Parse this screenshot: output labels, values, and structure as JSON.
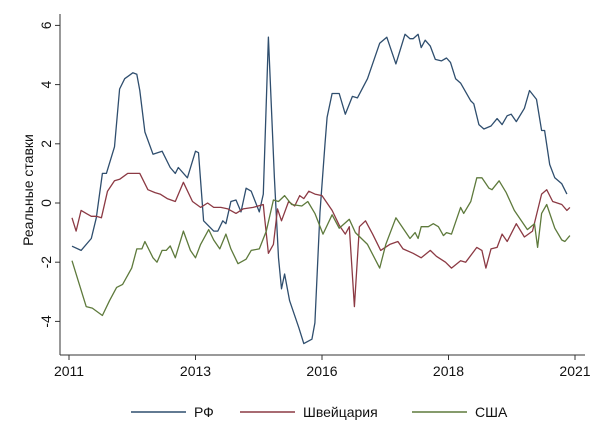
{
  "chart_data": {
    "type": "line",
    "title": "",
    "xlabel": "",
    "ylabel": "Реальные ставки",
    "xlim": [
      2011,
      2021
    ],
    "ylim": [
      -5,
      6.3
    ],
    "xticks": [
      {
        "value": 2011,
        "label": "2011"
      },
      {
        "value": 2013.5,
        "label": "2013"
      },
      {
        "value": 2016,
        "label": "2016"
      },
      {
        "value": 2018.5,
        "label": "2018"
      },
      {
        "value": 2021,
        "label": "2021"
      }
    ],
    "yticks": [
      -4,
      -2,
      0,
      2,
      4,
      6
    ],
    "grid": false,
    "legend_position": "bottom",
    "series": [
      {
        "name": "РФ",
        "color": "#2f4e6e",
        "x": [
          2011.06,
          2011.24,
          2011.44,
          2011.54,
          2011.66,
          2011.74,
          2011.9,
          2012.0,
          2012.1,
          2012.26,
          2012.34,
          2012.4,
          2012.5,
          2012.66,
          2012.84,
          2013.0,
          2013.1,
          2013.16,
          2013.34,
          2013.5,
          2013.56,
          2013.66,
          2013.86,
          2013.94,
          2014.04,
          2014.1,
          2014.2,
          2014.3,
          2014.4,
          2014.5,
          2014.6,
          2014.76,
          2014.84,
          2014.94,
          2015.06,
          2015.14,
          2015.2,
          2015.26,
          2015.36,
          2015.54,
          2015.64,
          2015.8,
          2015.86,
          2015.96,
          2016.06,
          2016.1,
          2016.2,
          2016.34,
          2016.46,
          2016.6,
          2016.7,
          2016.9,
          2017.14,
          2017.28,
          2017.46,
          2017.64,
          2017.74,
          2017.8,
          2017.9,
          2017.96,
          2018.04,
          2018.14,
          2018.24,
          2018.36,
          2018.46,
          2018.54,
          2018.64,
          2018.74,
          2018.94,
          2019.0,
          2019.1,
          2019.2,
          2019.34,
          2019.46,
          2019.56,
          2019.66,
          2019.74,
          2019.84,
          2020.0,
          2020.1,
          2020.24,
          2020.34,
          2020.4,
          2020.5,
          2020.6,
          2020.74,
          2020.84
        ],
        "y": [
          -1.46,
          -1.6,
          -1.2,
          -0.5,
          1.0,
          1.0,
          1.9,
          3.85,
          4.2,
          4.4,
          4.35,
          3.8,
          2.4,
          1.65,
          1.75,
          1.2,
          1.0,
          1.2,
          0.85,
          1.75,
          1.7,
          -0.6,
          -0.95,
          -0.95,
          -0.6,
          -0.7,
          0.05,
          0.1,
          -0.3,
          0.5,
          0.4,
          -0.3,
          0.3,
          5.6,
          0.85,
          -1.85,
          -2.9,
          -2.4,
          -3.3,
          -4.2,
          -4.75,
          -4.6,
          -4.05,
          -0.3,
          2.0,
          2.9,
          3.7,
          3.7,
          3.0,
          3.6,
          3.55,
          4.2,
          5.4,
          5.6,
          4.7,
          5.7,
          5.55,
          5.55,
          5.7,
          5.25,
          5.5,
          5.3,
          4.85,
          4.8,
          4.9,
          4.75,
          4.2,
          4.05,
          3.45,
          3.35,
          2.65,
          2.5,
          2.6,
          2.85,
          2.65,
          2.95,
          3.0,
          2.75,
          3.2,
          3.8,
          3.5,
          2.45,
          2.45,
          1.3,
          0.85,
          0.65,
          0.3
        ]
      },
      {
        "name": "Швейцария",
        "color": "#8c3a44",
        "x": [
          2011.06,
          2011.14,
          2011.24,
          2011.34,
          2011.44,
          2011.54,
          2011.64,
          2011.76,
          2011.9,
          2012.0,
          2012.16,
          2012.4,
          2012.56,
          2012.7,
          2012.8,
          2012.94,
          2013.1,
          2013.26,
          2013.44,
          2013.6,
          2013.74,
          2013.86,
          2014.0,
          2014.14,
          2014.3,
          2014.44,
          2014.64,
          2014.84,
          2014.86,
          2014.94,
          2015.04,
          2015.12,
          2015.2,
          2015.34,
          2015.46,
          2015.56,
          2015.64,
          2015.74,
          2015.86,
          2016.0,
          2016.2,
          2016.34,
          2016.46,
          2016.54,
          2016.64,
          2016.74,
          2016.86,
          2017.0,
          2017.16,
          2017.34,
          2017.5,
          2017.6,
          2017.8,
          2017.96,
          2018.14,
          2018.26,
          2018.44,
          2018.56,
          2018.74,
          2018.84,
          2019.06,
          2019.16,
          2019.24,
          2019.34,
          2019.46,
          2019.56,
          2019.66,
          2019.84,
          2020.0,
          2020.16,
          2020.34,
          2020.44,
          2020.56,
          2020.74,
          2020.84,
          2020.9
        ],
        "y": [
          -0.5,
          -0.95,
          -0.25,
          -0.35,
          -0.45,
          -0.45,
          -0.5,
          0.4,
          0.75,
          0.8,
          1.0,
          1.0,
          0.45,
          0.35,
          0.3,
          0.15,
          0.05,
          0.7,
          0.05,
          -0.15,
          0.0,
          -0.15,
          -0.15,
          -0.2,
          -0.35,
          -0.2,
          -0.15,
          -0.05,
          -0.4,
          -1.7,
          -1.4,
          -0.2,
          -0.6,
          0.05,
          -0.1,
          0.25,
          0.15,
          0.4,
          0.3,
          0.25,
          -0.25,
          -0.75,
          -1.05,
          -0.8,
          -3.5,
          -0.8,
          -0.6,
          -1.05,
          -1.6,
          -1.4,
          -1.3,
          -1.55,
          -1.7,
          -1.85,
          -1.6,
          -1.8,
          -2.0,
          -2.2,
          -1.95,
          -2.0,
          -1.5,
          -1.6,
          -2.2,
          -1.55,
          -1.5,
          -1.05,
          -1.3,
          -0.7,
          -1.15,
          -0.95,
          0.3,
          0.45,
          0.05,
          -0.05,
          -0.25,
          -0.15
        ]
      },
      {
        "name": "США",
        "color": "#5e7a3c",
        "x": [
          2011.06,
          2011.34,
          2011.46,
          2011.66,
          2011.8,
          2011.94,
          2012.06,
          2012.24,
          2012.34,
          2012.44,
          2012.5,
          2012.66,
          2012.74,
          2012.84,
          2012.92,
          2013.0,
          2013.1,
          2013.26,
          2013.4,
          2013.5,
          2013.6,
          2013.76,
          2013.86,
          2013.98,
          2014.1,
          2014.2,
          2014.34,
          2014.5,
          2014.6,
          2014.76,
          2014.9,
          2015.04,
          2015.14,
          2015.26,
          2015.4,
          2015.6,
          2015.72,
          2015.86,
          2016.02,
          2016.2,
          2016.34,
          2016.54,
          2016.66,
          2016.9,
          2017.14,
          2017.26,
          2017.46,
          2017.64,
          2017.74,
          2017.84,
          2017.9,
          2017.96,
          2018.1,
          2018.2,
          2018.3,
          2018.4,
          2018.46,
          2018.56,
          2018.74,
          2018.8,
          2018.94,
          2019.06,
          2019.16,
          2019.3,
          2019.36,
          2019.5,
          2019.64,
          2019.8,
          2020.06,
          2020.2,
          2020.26,
          2020.34,
          2020.44,
          2020.6,
          2020.74,
          2020.8,
          2020.9
        ],
        "y": [
          -1.95,
          -3.5,
          -3.55,
          -3.8,
          -3.3,
          -2.85,
          -2.75,
          -2.2,
          -1.55,
          -1.55,
          -1.3,
          -1.85,
          -2.0,
          -1.6,
          -1.6,
          -1.45,
          -1.85,
          -0.95,
          -1.6,
          -1.85,
          -1.4,
          -0.9,
          -1.25,
          -1.55,
          -1.05,
          -1.55,
          -2.05,
          -1.9,
          -1.6,
          -1.55,
          -0.95,
          0.1,
          0.05,
          0.25,
          -0.05,
          -0.1,
          0.05,
          -0.35,
          -1.05,
          -0.4,
          -0.85,
          -0.55,
          -1.0,
          -1.4,
          -2.2,
          -1.4,
          -0.5,
          -0.95,
          -1.2,
          -1.0,
          -1.2,
          -0.8,
          -0.8,
          -0.7,
          -0.8,
          -1.1,
          -1.0,
          -1.05,
          -0.15,
          -0.35,
          0.05,
          0.85,
          0.85,
          0.5,
          0.45,
          0.75,
          0.35,
          -0.25,
          -0.9,
          -0.7,
          -1.5,
          -0.35,
          -0.05,
          -0.85,
          -1.25,
          -1.3,
          -1.1
        ]
      }
    ]
  }
}
